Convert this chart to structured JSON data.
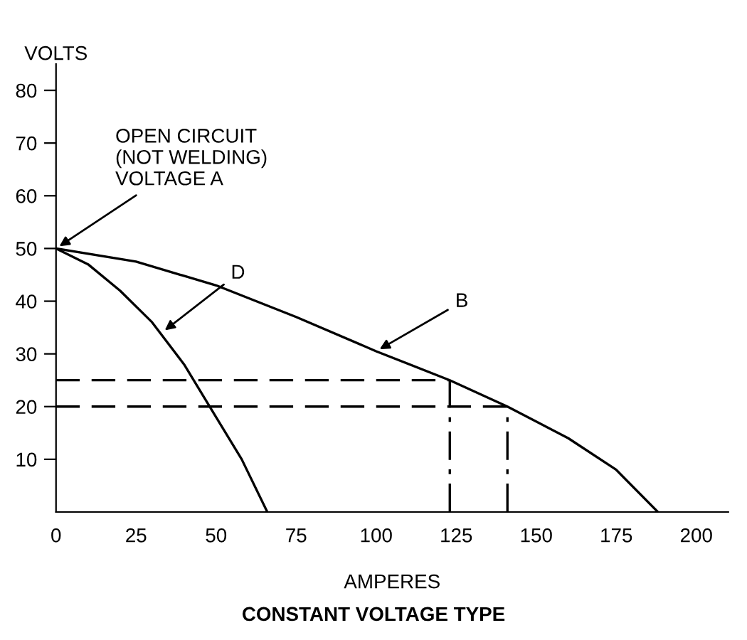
{
  "chart_data": {
    "type": "line",
    "title": "CONSTANT VOLTAGE TYPE",
    "xlabel": "AMPERES",
    "ylabel": "VOLTS",
    "xlim": [
      0,
      210
    ],
    "ylim": [
      0,
      85
    ],
    "xticks": [
      0,
      25,
      50,
      75,
      100,
      125,
      150,
      175,
      200
    ],
    "yticks": [
      10,
      20,
      30,
      40,
      50,
      60,
      70,
      80
    ],
    "grid": false,
    "legend": false,
    "marker": "none",
    "series": [
      {
        "color": "#000000",
        "line_style": "solid",
        "x": [
          0,
          25,
          50,
          75,
          100,
          123,
          141,
          160,
          175,
          188
        ],
        "values": [
          50,
          47.5,
          43,
          37,
          30.5,
          25,
          20,
          14,
          8,
          0
        ]
      },
      {
        "color": "#000000",
        "line_style": "solid",
        "x": [
          0,
          10,
          20,
          30,
          40,
          50,
          58,
          66
        ],
        "values": [
          50,
          47,
          42,
          36,
          28,
          18,
          10,
          0
        ]
      },
      {
        "color": "#000000",
        "line_style": "dashed",
        "x": [
          0,
          123
        ],
        "values": [
          25,
          25
        ]
      },
      {
        "color": "#000000",
        "line_style": "dashed",
        "x": [
          0,
          141
        ],
        "values": [
          20,
          20
        ]
      },
      {
        "color": "#000000",
        "line_style": "dashdot",
        "x": [
          123,
          123
        ],
        "values": [
          0,
          25
        ]
      },
      {
        "color": "#000000",
        "line_style": "dashdot",
        "x": [
          141,
          141
        ],
        "values": [
          0,
          20
        ]
      }
    ],
    "annotations": [
      {
        "text": "OPEN CIRCUIT\n(NOT WELDING)\nVOLTAGE A",
        "x": 0,
        "y": 50
      },
      {
        "text": "B",
        "x": 100,
        "y": 30.5
      },
      {
        "text": "D",
        "x": 33,
        "y": 34
      }
    ]
  }
}
